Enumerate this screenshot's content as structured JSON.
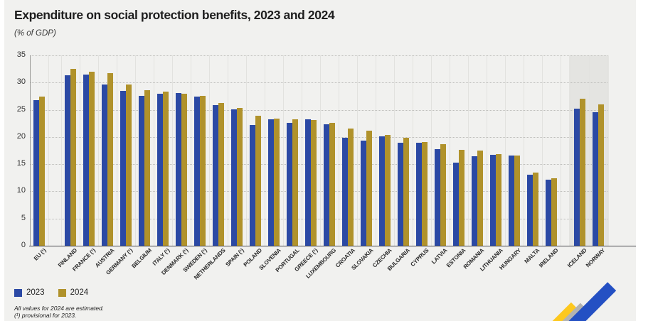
{
  "title": "Expenditure on social protection benefits, 2023 and 2024",
  "subtitle": "(% of GDP)",
  "chart_data": {
    "type": "bar",
    "title": "Expenditure on social protection benefits, 2023 and 2024",
    "ylabel": "(% of GDP)",
    "xlabel": "",
    "ylim": [
      0,
      35
    ],
    "yticks": [
      0,
      5,
      10,
      15,
      20,
      25,
      30,
      35
    ],
    "grid": "horizontal-dotted",
    "legend_position": "bottom-left",
    "categories": [
      "EU (¹)",
      "FINLAND",
      "FRANCE (¹)",
      "AUSTRIA",
      "GERMANY (¹)",
      "BELGIUM",
      "ITALY (¹)",
      "DENMARK (¹)",
      "SWEDEN (¹)",
      "NETHERLANDS",
      "SPAIN (¹)",
      "POLAND",
      "SLOVENIA",
      "PORTUGAL",
      "GREECE (¹)",
      "LUXEMBOURG",
      "CROATIA",
      "SLOVAKIA",
      "CZECHIA",
      "BULGARIA",
      "CYPRUS",
      "LATVIA",
      "ESTONIA",
      "ROMANIA",
      "LITHUANIA",
      "HUNGARY",
      "MALTA",
      "IRELAND",
      "ICELAND",
      "NORWAY"
    ],
    "series": [
      {
        "name": "2023",
        "color": "#2b49a4",
        "values": [
          26.8,
          31.3,
          31.5,
          29.7,
          28.5,
          27.5,
          28.0,
          28.1,
          27.4,
          25.9,
          25.1,
          22.2,
          23.2,
          22.6,
          23.3,
          22.3,
          19.9,
          19.3,
          20.1,
          18.9,
          18.9,
          17.7,
          15.3,
          16.4,
          16.7,
          16.6,
          13.0,
          12.2,
          25.2,
          24.6
        ]
      },
      {
        "name": "2024",
        "color": "#b0922b",
        "values": [
          27.4,
          32.5,
          32.0,
          31.7,
          29.6,
          28.6,
          28.3,
          27.9,
          27.5,
          26.3,
          25.3,
          23.9,
          23.4,
          23.2,
          23.1,
          22.6,
          21.6,
          21.2,
          20.4,
          19.8,
          19.1,
          18.7,
          17.6,
          17.5,
          16.9,
          16.6,
          13.4,
          12.4,
          27.0,
          26.0
        ]
      }
    ],
    "highlighted_categories": [
      "ICELAND",
      "NORWAY"
    ],
    "gap_after_first_category": true,
    "gap_before_highlighted": true
  },
  "legend": {
    "items": [
      {
        "label": "2023",
        "color": "#2b49a4"
      },
      {
        "label": "2024",
        "color": "#b0922b"
      }
    ]
  },
  "footnotes": [
    "All values for 2024 are estimated.",
    "(¹) provisional for 2023."
  ],
  "logo": {
    "name": "statistics-arrow-logo",
    "colors": {
      "yellow": "#fdc81e",
      "gray": "#b3b3b1",
      "blue": "#2450c3"
    }
  }
}
